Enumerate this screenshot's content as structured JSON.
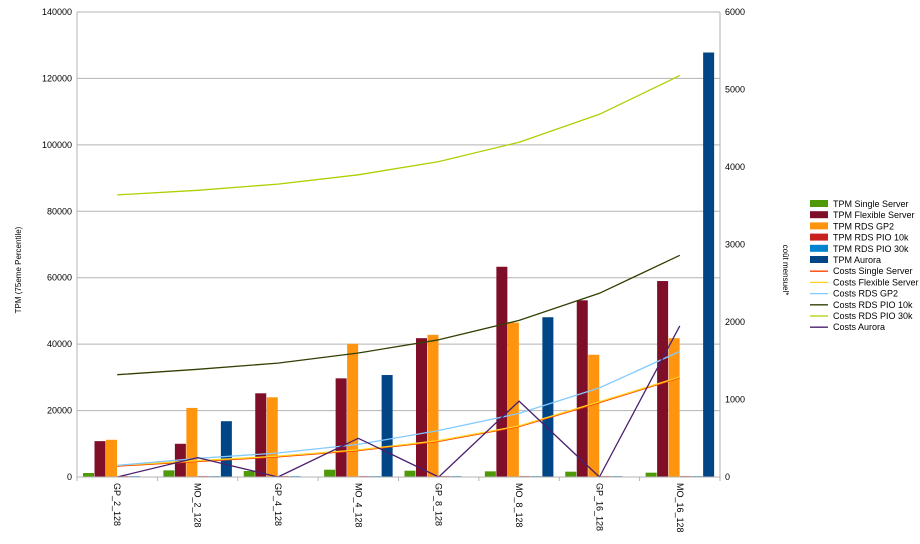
{
  "chart_data": {
    "type": "bar",
    "title": "",
    "xlabel": "",
    "ylabel": "TPM (75eme Percentile)",
    "y2label": "coût mensuel*",
    "ylim": [
      0,
      140000
    ],
    "y2lim": [
      0,
      6000
    ],
    "yticks": [
      "0",
      "20000",
      "40000",
      "60000",
      "80000",
      "100000",
      "120000",
      "140000"
    ],
    "y2ticks": [
      "0",
      "1000",
      "2000",
      "3000",
      "4000",
      "5000",
      "6000"
    ],
    "grid": true,
    "legend_position": "right",
    "categories": [
      "GP_2_128",
      "MO_2_128",
      "GP_4_128",
      "MO_4_128",
      "GP_8_128",
      "MO_8_128",
      "GP_16_128",
      "MO_16_128"
    ],
    "bar_series": [
      {
        "name": "TPM Single Server",
        "color": "#4e9a06",
        "values": [
          1200,
          2000,
          1800,
          2200,
          1900,
          1700,
          1600,
          1300
        ]
      },
      {
        "name": "TPM Flexible Server",
        "color": "#7f0f29",
        "values": [
          10800,
          10000,
          25200,
          29700,
          41800,
          63300,
          53200,
          59000
        ]
      },
      {
        "name": "TPM RDS GP2",
        "color": "#ff950e",
        "values": [
          11200,
          20800,
          24000,
          40100,
          42800,
          46500,
          36800,
          41800
        ]
      },
      {
        "name": "TPM RDS PIO 10k",
        "color": "#c9211e",
        "values": [
          250,
          250,
          250,
          250,
          250,
          250,
          250,
          250
        ]
      },
      {
        "name": "TPM RDS PIO 30k",
        "color": "#0084d1",
        "values": [
          250,
          250,
          250,
          250,
          250,
          250,
          250,
          250
        ]
      },
      {
        "name": "TPM Aurora",
        "color": "#004586",
        "values": [
          null,
          16800,
          null,
          30700,
          null,
          48100,
          null,
          127800
        ]
      }
    ],
    "line_series": [
      {
        "name": "Costs Single Server",
        "color": "#ff4000",
        "values": [
          140,
          200,
          260,
          340,
          460,
          650,
          960,
          1280
        ]
      },
      {
        "name": "Costs Flexible Server",
        "color": "#ffd320",
        "values": [
          150,
          210,
          270,
          350,
          470,
          660,
          970,
          1290
        ]
      },
      {
        "name": "Costs RDS GP2",
        "color": "#83caff",
        "values": [
          150,
          240,
          310,
          420,
          600,
          820,
          1150,
          1620
        ]
      },
      {
        "name": "Costs RDS PIO 10k",
        "color": "#314004",
        "values": [
          1320,
          1390,
          1470,
          1600,
          1770,
          2020,
          2370,
          2860
        ]
      },
      {
        "name": "Costs RDS PIO 30k",
        "color": "#aecf00",
        "values": [
          3640,
          3700,
          3780,
          3900,
          4070,
          4320,
          4680,
          5180
        ]
      },
      {
        "name": "Costs Aurora",
        "color": "#4b1f6f",
        "values": [
          0,
          250,
          0,
          500,
          0,
          980,
          0,
          1950
        ]
      }
    ]
  }
}
